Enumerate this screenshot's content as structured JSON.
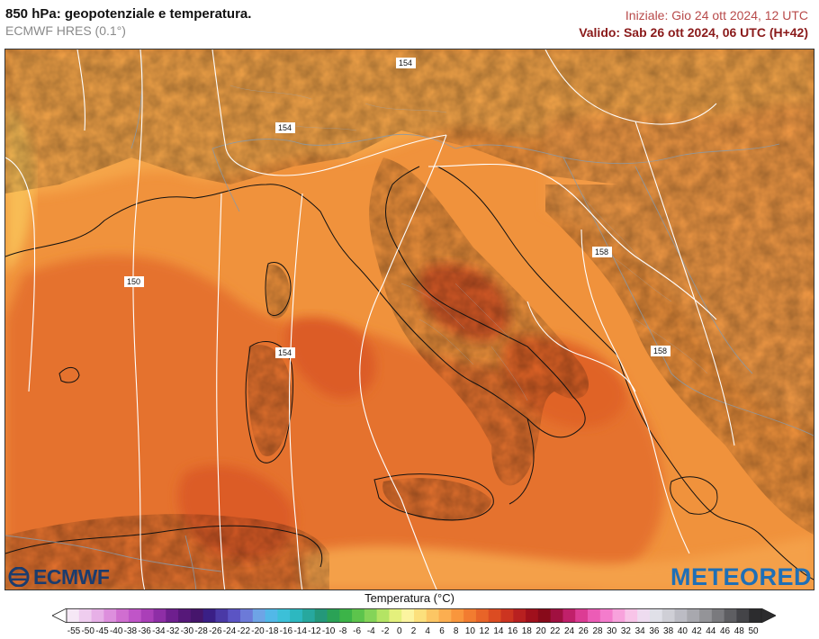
{
  "header": {
    "title": "850 hPa: geopotenziale e temperatura.",
    "subtitle": "ECMWF HRES (0.1°)",
    "init_time": "Iniziale: Gio 24 ott 2024, 12 UTC",
    "valid_time": "Valido: Sab 26 ott 2024, 06 UTC (H+42)"
  },
  "map": {
    "contours": [
      {
        "label": "154"
      },
      {
        "label": "154"
      },
      {
        "label": "150"
      },
      {
        "label": "154"
      },
      {
        "label": "158"
      },
      {
        "label": "158"
      }
    ]
  },
  "logos": {
    "ecmwf": "ECMWF",
    "meteored": "METEORED"
  },
  "legend": {
    "title": "Temperatura (°C)",
    "labels": [
      "-55",
      "-50",
      "-45",
      "-40",
      "-38",
      "-36",
      "-34",
      "-32",
      "-30",
      "-28",
      "-26",
      "-24",
      "-22",
      "-20",
      "-18",
      "-16",
      "-14",
      "-12",
      "-10",
      "-8",
      "-6",
      "-4",
      "-2",
      "0",
      "2",
      "4",
      "6",
      "8",
      "10",
      "12",
      "14",
      "16",
      "18",
      "20",
      "22",
      "24",
      "26",
      "28",
      "30",
      "32",
      "34",
      "36",
      "38",
      "40",
      "42",
      "44",
      "46",
      "48",
      "50"
    ],
    "colors": [
      "#f6e8f6",
      "#efcdef",
      "#e7b0e7",
      "#dd8fdd",
      "#d06ed0",
      "#c055c8",
      "#aa3fb8",
      "#8e2ea6",
      "#6e1f8e",
      "#561879",
      "#46156c",
      "#3a1f86",
      "#4a39a6",
      "#5b54c4",
      "#6c7ad8",
      "#6ea4e6",
      "#52b8e8",
      "#3cc0d8",
      "#2db8c0",
      "#27a89e",
      "#24987a",
      "#2aa256",
      "#3cb448",
      "#5cc44c",
      "#84d458",
      "#b4e464",
      "#e4f07c",
      "#fcf4a0",
      "#fce07c",
      "#fcc664",
      "#fcae50",
      "#f9963c",
      "#f27c30",
      "#e86428",
      "#dc4c22",
      "#cc3420",
      "#b82020",
      "#a0101c",
      "#880a1a",
      "#a01040",
      "#c0206a",
      "#dc3c94",
      "#ec5cb6",
      "#f47ccc",
      "#f8a2dc",
      "#f8c4e8",
      "#eedcf0",
      "#e0e0e8",
      "#cfcfd6",
      "#bcbcc4",
      "#a8a8ae",
      "#949498",
      "#7a7a7e",
      "#5e5e62",
      "#444448",
      "#2c2c2e"
    ]
  }
}
